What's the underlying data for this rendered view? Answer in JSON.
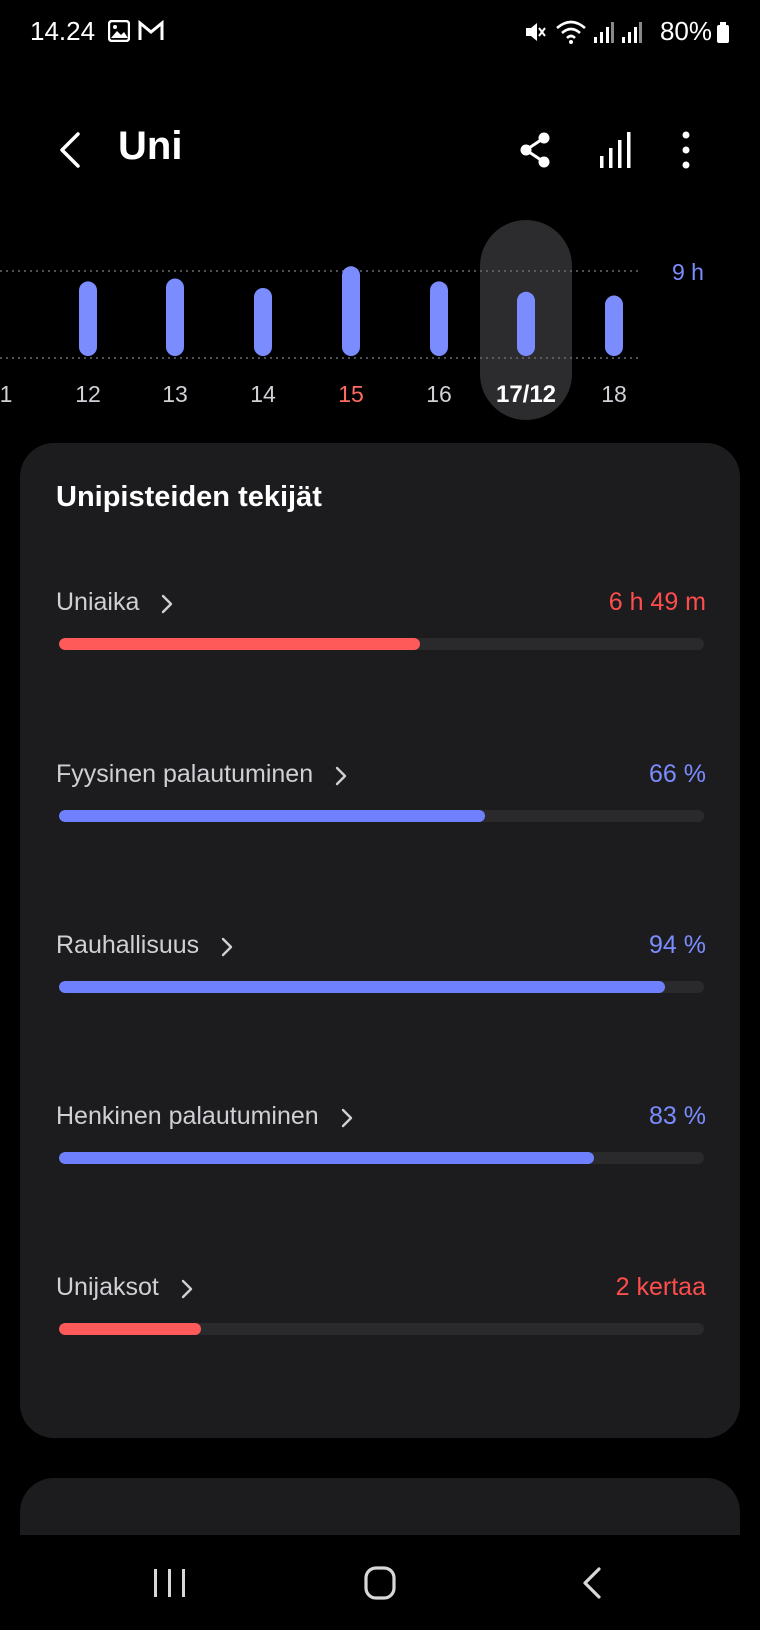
{
  "status_bar": {
    "time": "14.24",
    "battery": "80%",
    "icons": [
      "image-icon",
      "gmail-icon",
      "mute-icon",
      "wifi-icon",
      "signal-icon",
      "signal-icon",
      "battery-icon"
    ]
  },
  "header": {
    "title": "Uni",
    "back_icon": "chevron-left-icon",
    "actions": [
      "share-icon",
      "bar-chart-icon",
      "more-vertical-icon"
    ]
  },
  "chart_data": {
    "type": "bar",
    "categories": [
      "1",
      "12",
      "13",
      "14",
      "15",
      "16",
      "17/12",
      "18"
    ],
    "values": [
      null,
      7.9,
      8.2,
      7.2,
      9.5,
      7.9,
      6.8,
      6.4
    ],
    "reference_label": "9 h",
    "reference_value": 9,
    "ylim": [
      0,
      10
    ],
    "selected_category": "17/12",
    "highlighted_category": "15",
    "bar_color": "#7b8cff",
    "highlight_label_color": "#ff6b63",
    "selected_bg_color": "#2c2c2e"
  },
  "factors": {
    "title": "Unipisteiden tekijät",
    "items": [
      {
        "label": "Uniaika",
        "value": "6 h 49 m",
        "fraction": 0.56,
        "color": "#ff5a5a",
        "value_color": "#ff4d4d"
      },
      {
        "label": "Fyysinen palautuminen",
        "value": "66 %",
        "fraction": 0.66,
        "color": "#6f80ff",
        "value_color": "#7b8cff"
      },
      {
        "label": "Rauhallisuus",
        "value": "94 %",
        "fraction": 0.94,
        "color": "#6f80ff",
        "value_color": "#7b8cff"
      },
      {
        "label": "Henkinen palautuminen",
        "value": "83 %",
        "fraction": 0.83,
        "color": "#6f80ff",
        "value_color": "#7b8cff"
      },
      {
        "label": "Unijaksot",
        "value": "2 kertaa",
        "fraction": 0.22,
        "color": "#ff5a5a",
        "value_color": "#ff4d4d"
      }
    ]
  },
  "navbar": {
    "buttons": [
      "recent-apps-icon",
      "home-icon",
      "back-icon"
    ]
  }
}
